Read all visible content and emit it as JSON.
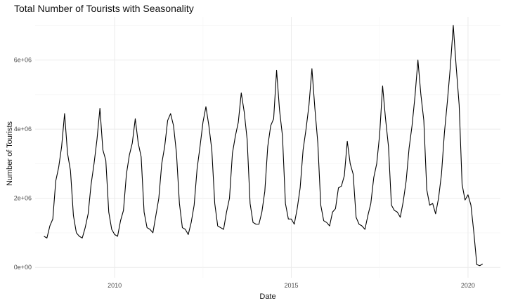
{
  "chart_data": {
    "type": "line",
    "title": "Total Number of Tourists with Seasonality",
    "xlabel": "Date",
    "ylabel": "Number of Tourists",
    "xlim": [
      "2007-10",
      "2020-12"
    ],
    "ylim": [
      -300000,
      7250000
    ],
    "x_ticks": [
      "2010",
      "2015",
      "2020"
    ],
    "y_ticks": [
      "0e+00",
      "2e+06",
      "4e+06",
      "6e+06"
    ],
    "grid": true,
    "legend": "none",
    "line_color": "#000000",
    "series": [
      {
        "x": [
          "2008-01",
          "2008-02",
          "2008-03",
          "2008-04",
          "2008-05",
          "2008-06",
          "2008-07",
          "2008-08",
          "2008-09",
          "2008-10",
          "2008-11",
          "2008-12",
          "2009-01",
          "2009-02",
          "2009-03",
          "2009-04",
          "2009-05",
          "2009-06",
          "2009-07",
          "2009-08",
          "2009-09",
          "2009-10",
          "2009-11",
          "2009-12",
          "2010-01",
          "2010-02",
          "2010-03",
          "2010-04",
          "2010-05",
          "2010-06",
          "2010-07",
          "2010-08",
          "2010-09",
          "2010-10",
          "2010-11",
          "2010-12",
          "2011-01",
          "2011-02",
          "2011-03",
          "2011-04",
          "2011-05",
          "2011-06",
          "2011-07",
          "2011-08",
          "2011-09",
          "2011-10",
          "2011-11",
          "2011-12",
          "2012-01",
          "2012-02",
          "2012-03",
          "2012-04",
          "2012-05",
          "2012-06",
          "2012-07",
          "2012-08",
          "2012-09",
          "2012-10",
          "2012-11",
          "2012-12",
          "2013-01",
          "2013-02",
          "2013-03",
          "2013-04",
          "2013-05",
          "2013-06",
          "2013-07",
          "2013-08",
          "2013-09",
          "2013-10",
          "2013-11",
          "2013-12",
          "2014-01",
          "2014-02",
          "2014-03",
          "2014-04",
          "2014-05",
          "2014-06",
          "2014-07",
          "2014-08",
          "2014-09",
          "2014-10",
          "2014-11",
          "2014-12",
          "2015-01",
          "2015-02",
          "2015-03",
          "2015-04",
          "2015-05",
          "2015-06",
          "2015-07",
          "2015-08",
          "2015-09",
          "2015-10",
          "2015-11",
          "2015-12",
          "2016-01",
          "2016-02",
          "2016-03",
          "2016-04",
          "2016-05",
          "2016-06",
          "2016-07",
          "2016-08",
          "2016-09",
          "2016-10",
          "2016-11",
          "2016-12",
          "2017-01",
          "2017-02",
          "2017-03",
          "2017-04",
          "2017-05",
          "2017-06",
          "2017-07",
          "2017-08",
          "2017-09",
          "2017-10",
          "2017-11",
          "2017-12",
          "2018-01",
          "2018-02",
          "2018-03",
          "2018-04",
          "2018-05",
          "2018-06",
          "2018-07",
          "2018-08",
          "2018-09",
          "2018-10",
          "2018-11",
          "2018-12",
          "2019-01",
          "2019-02",
          "2019-03",
          "2019-04",
          "2019-05",
          "2019-06",
          "2019-07",
          "2019-08",
          "2019-09",
          "2019-10",
          "2019-11",
          "2019-12",
          "2020-01",
          "2020-02",
          "2020-03",
          "2020-04",
          "2020-05",
          "2020-06"
        ],
        "y": [
          900000,
          850000,
          1200000,
          1400000,
          2500000,
          2900000,
          3500000,
          4450000,
          3300000,
          2800000,
          1500000,
          1000000,
          900000,
          850000,
          1150000,
          1550000,
          2400000,
          3000000,
          3700000,
          4600000,
          3400000,
          3100000,
          1600000,
          1100000,
          950000,
          900000,
          1350000,
          1650000,
          2700000,
          3250000,
          3600000,
          4300000,
          3600000,
          3200000,
          1600000,
          1150000,
          1100000,
          1000000,
          1500000,
          2000000,
          3000000,
          3500000,
          4250000,
          4450000,
          4100000,
          3300000,
          1850000,
          1150000,
          1100000,
          950000,
          1300000,
          1800000,
          2850000,
          3500000,
          4200000,
          4650000,
          4100000,
          3400000,
          1850000,
          1200000,
          1150000,
          1100000,
          1600000,
          2000000,
          3300000,
          3800000,
          4200000,
          5050000,
          4500000,
          3700000,
          1850000,
          1300000,
          1250000,
          1250000,
          1600000,
          2200000,
          3500000,
          4100000,
          4300000,
          5700000,
          4550000,
          3800000,
          1850000,
          1400000,
          1400000,
          1250000,
          1700000,
          2300000,
          3400000,
          4000000,
          4700000,
          5750000,
          4600000,
          3600000,
          1800000,
          1350000,
          1300000,
          1200000,
          1600000,
          1700000,
          2300000,
          2350000,
          2650000,
          3650000,
          3000000,
          2700000,
          1450000,
          1250000,
          1200000,
          1100000,
          1500000,
          1850000,
          2600000,
          3000000,
          3850000,
          5250000,
          4300000,
          3500000,
          1800000,
          1650000,
          1600000,
          1450000,
          1900000,
          2500000,
          3450000,
          4100000,
          4950000,
          6000000,
          5000000,
          4250000,
          2250000,
          1800000,
          1850000,
          1550000,
          2000000,
          2700000,
          3900000,
          4800000,
          5800000,
          7000000,
          5800000,
          4700000,
          2400000,
          1950000,
          2100000,
          1800000,
          1000000,
          80000,
          50000,
          100000
        ]
      }
    ]
  }
}
